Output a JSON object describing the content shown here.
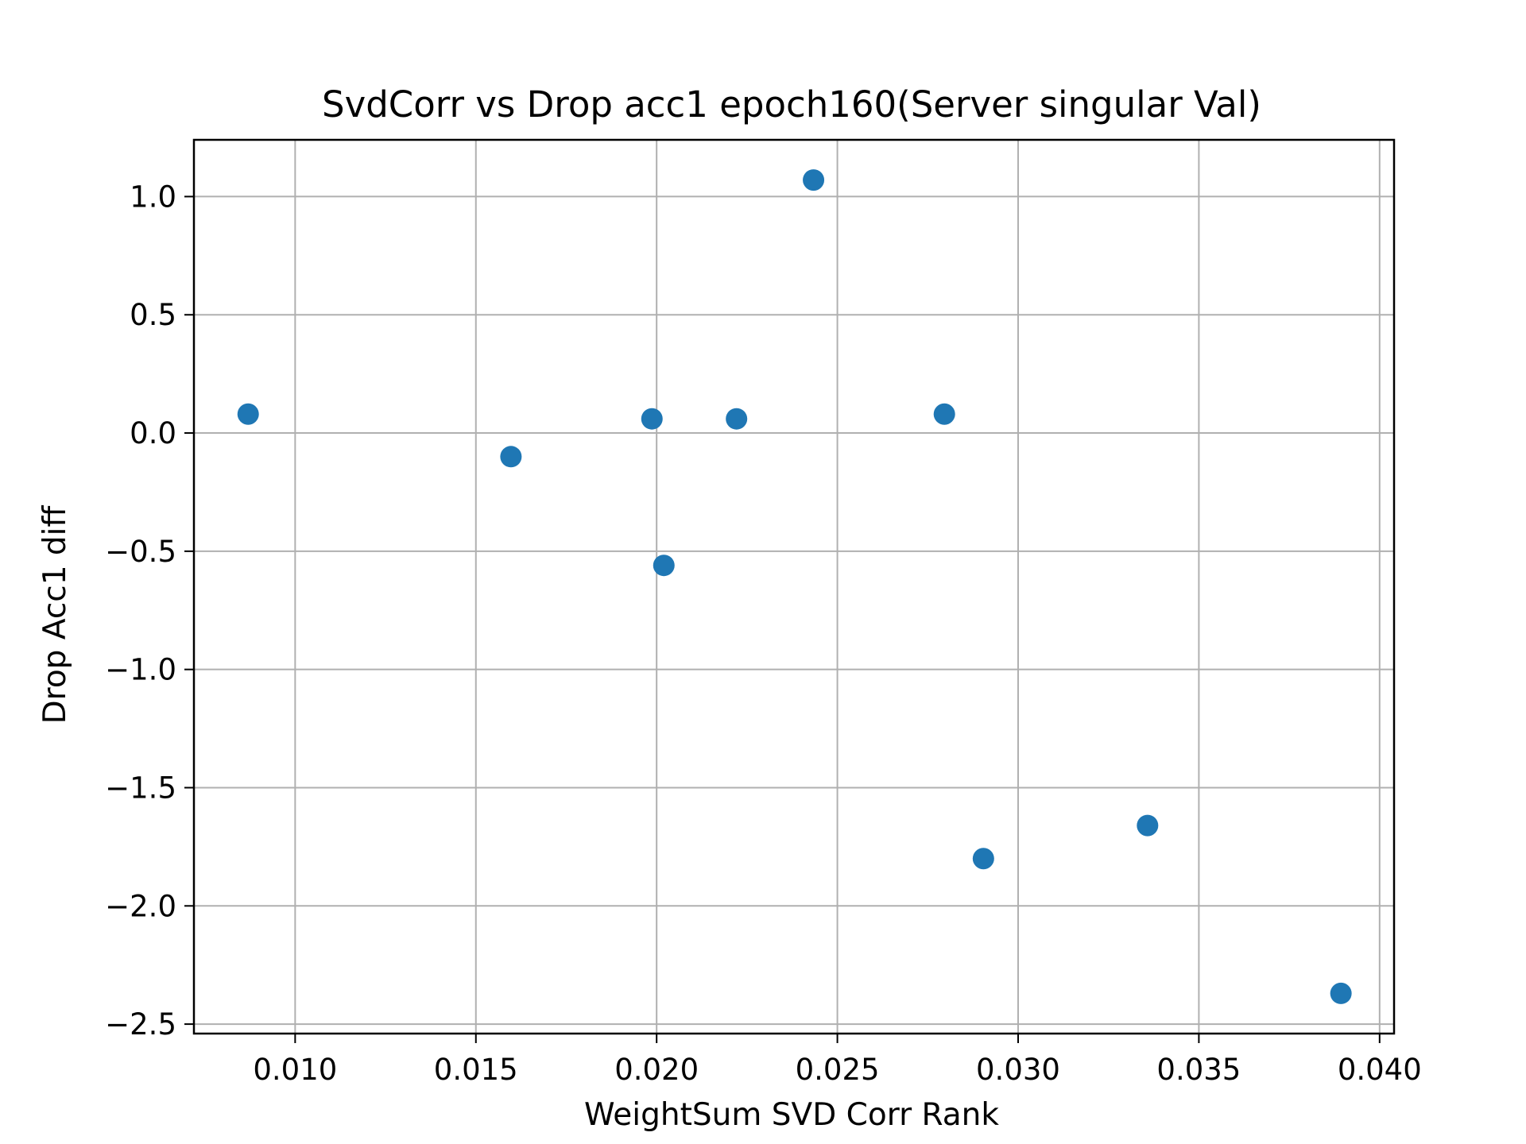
{
  "chart_data": {
    "type": "scatter",
    "title": "SvdCorr vs Drop acc1 epoch160(Server singular Val)",
    "xlabel": "WeightSum SVD Corr Rank",
    "ylabel": "Drop Acc1 diff",
    "xlim": [
      0.0072,
      0.0404
    ],
    "ylim": [
      -2.54,
      1.24
    ],
    "xticks": [
      0.01,
      0.015,
      0.02,
      0.025,
      0.03,
      0.035,
      0.04
    ],
    "xtick_labels": [
      "0.010",
      "0.015",
      "0.020",
      "0.025",
      "0.030",
      "0.035",
      "0.040"
    ],
    "yticks": [
      1.0,
      0.5,
      0.0,
      -0.5,
      -1.0,
      -1.5,
      -2.0,
      -2.5
    ],
    "ytick_labels": [
      "1.0",
      "0.5",
      "0.0",
      "−0.5",
      "−1.0",
      "−1.5",
      "−2.0",
      "−2.5"
    ],
    "grid": true,
    "marker_color": "#1f77b4",
    "points": [
      {
        "x": 0.0087,
        "y": 0.08
      },
      {
        "x": 0.01597,
        "y": -0.1
      },
      {
        "x": 0.01987,
        "y": 0.06
      },
      {
        "x": 0.0202,
        "y": -0.56
      },
      {
        "x": 0.02221,
        "y": 0.06
      },
      {
        "x": 0.02434,
        "y": 1.07
      },
      {
        "x": 0.02796,
        "y": 0.08
      },
      {
        "x": 0.02904,
        "y": -1.8
      },
      {
        "x": 0.03358,
        "y": -1.66
      },
      {
        "x": 0.03893,
        "y": -2.37
      }
    ]
  }
}
